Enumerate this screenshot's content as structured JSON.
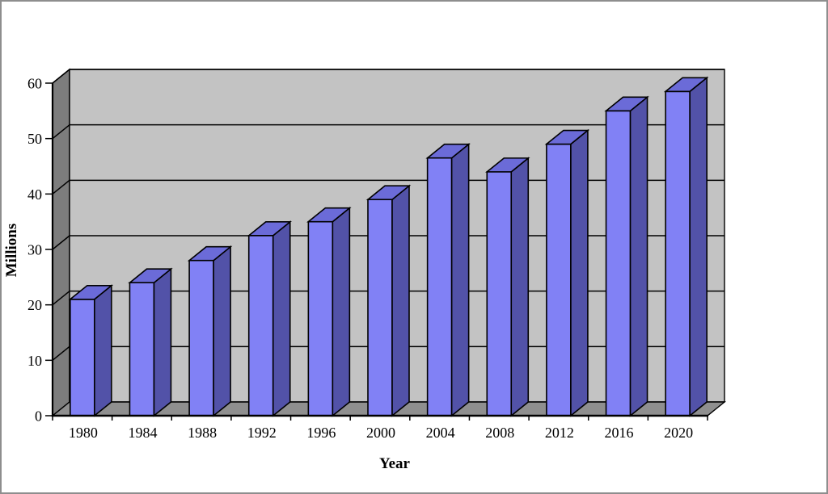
{
  "window": {
    "background": "#ffffff",
    "border_color": "#8e8e8e"
  },
  "chart_data": {
    "type": "bar",
    "subtype": "3d-column",
    "title": "",
    "xlabel": "Year",
    "ylabel": "Millions",
    "categories": [
      "1980",
      "1984",
      "1988",
      "1992",
      "1996",
      "2000",
      "2004",
      "2008",
      "2012",
      "2016",
      "2020"
    ],
    "values": [
      21,
      24,
      28,
      32.5,
      35,
      39,
      46.5,
      44,
      49,
      55,
      58.5
    ],
    "ylim": [
      0,
      60
    ],
    "yticks": [
      0,
      10,
      20,
      30,
      40,
      50,
      60
    ],
    "grid": true,
    "legend_position": "none",
    "colors": {
      "bar_front": "#8181f5",
      "bar_top": "#6b6bd8",
      "bar_side": "#5252a8",
      "back_wall": "#c3c3c3",
      "side_wall": "#7d7d7d",
      "floor": "#8f8f8f",
      "outline": "#000000"
    }
  }
}
